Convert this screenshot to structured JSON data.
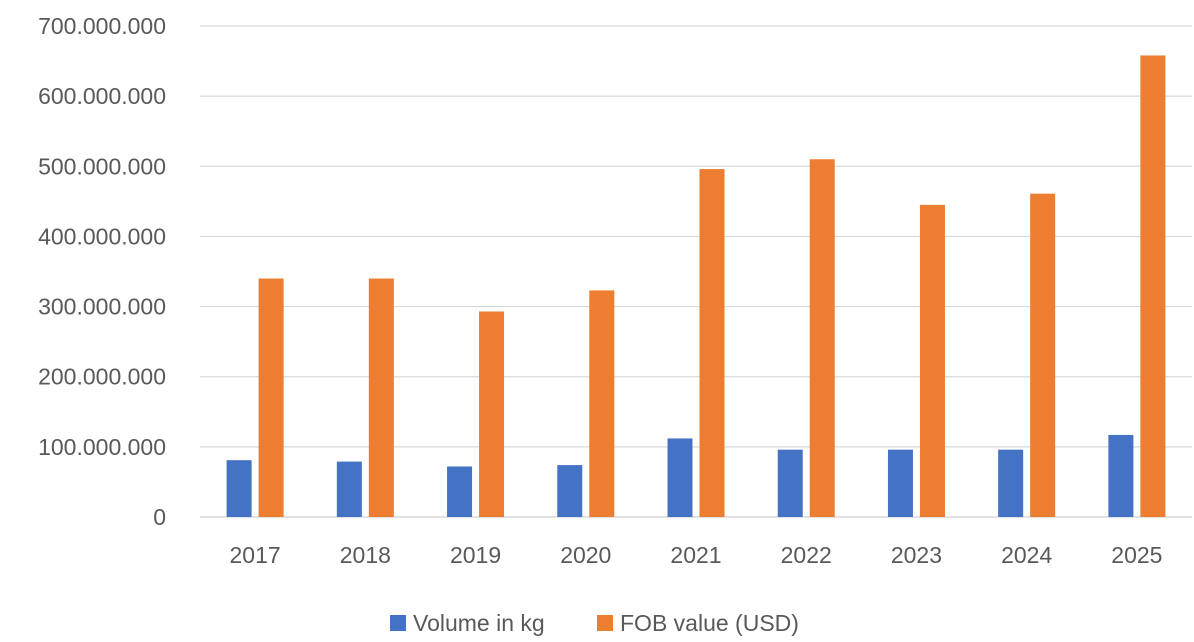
{
  "chart_data": {
    "type": "bar",
    "categories": [
      "2017",
      "2018",
      "2019",
      "2020",
      "2021",
      "2022",
      "2023",
      "2024",
      "2025"
    ],
    "series": [
      {
        "name": "Volume in kg",
        "color": "#4472C4",
        "values": [
          81000000,
          79000000,
          72000000,
          74000000,
          112000000,
          96000000,
          96000000,
          96000000,
          117000000
        ]
      },
      {
        "name": "FOB value (USD)",
        "color": "#ED7D31",
        "values": [
          340000000,
          340000000,
          293000000,
          323000000,
          496000000,
          510000000,
          445000000,
          461000000,
          658000000
        ]
      }
    ],
    "y_ticks": [
      "0",
      "100.000.000",
      "200.000.000",
      "300.000.000",
      "400.000.000",
      "500.000.000",
      "600.000.000",
      "700.000.000"
    ],
    "ylim": [
      0,
      700000000
    ],
    "grid": true,
    "legend_position": "bottom",
    "title": "",
    "xlabel": "",
    "ylabel": ""
  }
}
